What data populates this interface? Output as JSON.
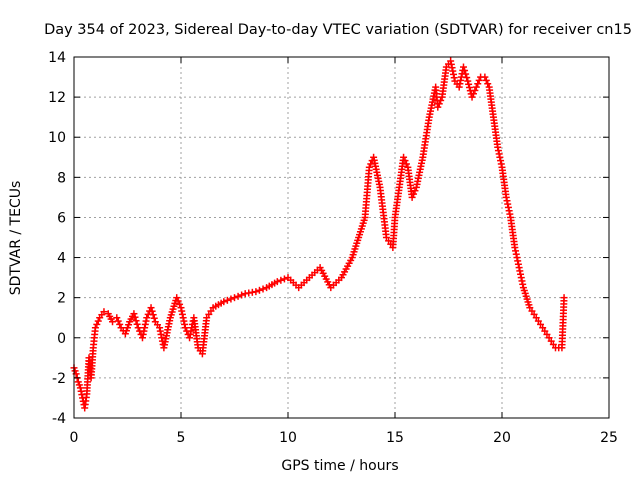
{
  "chart_data": {
    "type": "scatter",
    "title": "Day 354 of 2023, Sidereal Day-to-day VTEC variation (SDTVAR) for receiver cn15",
    "xlabel": "GPS time / hours",
    "ylabel": "SDTVAR / TECUs",
    "xlim": [
      0,
      25
    ],
    "ylim": [
      -4,
      14
    ],
    "xticks": [
      0,
      5,
      10,
      15,
      20,
      25
    ],
    "yticks": [
      -4,
      -2,
      0,
      2,
      4,
      6,
      8,
      10,
      12,
      14
    ],
    "grid": true,
    "marker": "plus",
    "color": "#ff0000",
    "series": [
      {
        "name": "SDTVAR",
        "x": [
          0.0,
          0.1,
          0.2,
          0.3,
          0.4,
          0.5,
          0.6,
          0.7,
          0.8,
          0.9,
          1.0,
          1.2,
          1.4,
          1.6,
          1.8,
          2.0,
          2.2,
          2.4,
          2.6,
          2.8,
          3.0,
          3.2,
          3.4,
          3.6,
          3.8,
          4.0,
          4.2,
          4.5,
          4.8,
          5.0,
          5.2,
          5.4,
          5.6,
          5.8,
          6.0,
          6.2,
          6.5,
          7.0,
          7.5,
          8.0,
          8.5,
          9.0,
          9.5,
          10.0,
          10.5,
          11.0,
          11.5,
          12.0,
          12.5,
          13.0,
          13.3,
          13.6,
          13.8,
          14.0,
          14.3,
          14.6,
          14.9,
          15.0,
          15.2,
          15.4,
          15.6,
          15.8,
          16.0,
          16.3,
          16.6,
          16.9,
          17.0,
          17.2,
          17.4,
          17.6,
          17.8,
          18.0,
          18.2,
          18.4,
          18.6,
          18.8,
          19.0,
          19.2,
          19.4,
          19.6,
          19.8,
          20.0,
          20.2,
          20.4,
          20.6,
          20.8,
          21.0,
          21.3,
          21.6,
          21.9,
          22.2,
          22.5,
          22.8,
          22.9
        ],
        "y": [
          -1.5,
          -1.8,
          -2.2,
          -2.5,
          -3.0,
          -3.5,
          -2.8,
          -1.0,
          -2.0,
          -0.5,
          0.5,
          1.0,
          1.3,
          1.2,
          0.8,
          1.0,
          0.5,
          0.2,
          0.8,
          1.2,
          0.5,
          0.0,
          1.0,
          1.5,
          0.8,
          0.5,
          -0.5,
          1.0,
          2.0,
          1.5,
          0.5,
          0.0,
          1.0,
          -0.5,
          -0.8,
          1.0,
          1.5,
          1.8,
          2.0,
          2.2,
          2.3,
          2.5,
          2.8,
          3.0,
          2.5,
          3.0,
          3.5,
          2.5,
          3.0,
          4.0,
          5.0,
          6.0,
          8.5,
          9.0,
          7.5,
          5.0,
          4.5,
          6.0,
          7.5,
          9.0,
          8.5,
          7.0,
          7.5,
          9.0,
          11.0,
          12.5,
          11.5,
          12.0,
          13.5,
          13.8,
          12.8,
          12.5,
          13.5,
          12.8,
          12.0,
          12.5,
          13.0,
          13.0,
          12.5,
          11.0,
          9.5,
          8.5,
          7.0,
          6.0,
          4.5,
          3.5,
          2.5,
          1.5,
          1.0,
          0.5,
          0.0,
          -0.5,
          -0.5,
          2.0
        ]
      }
    ]
  }
}
